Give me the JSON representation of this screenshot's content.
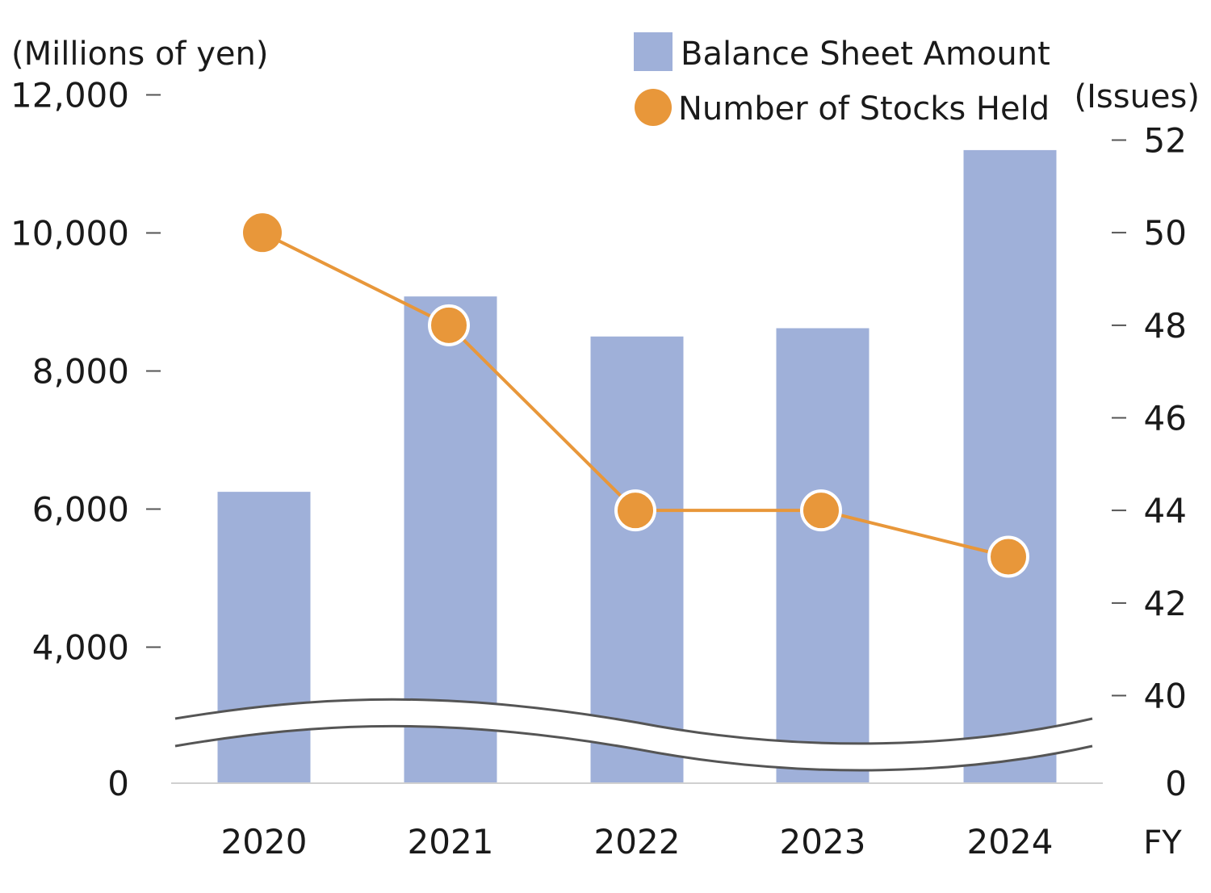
{
  "chart_data": {
    "type": "bar",
    "categories": [
      "2020",
      "2021",
      "2022",
      "2023",
      "2024"
    ],
    "xlabel": "FY",
    "y_left": {
      "label": "(Millions of yen)",
      "ticks": [
        "0",
        "4,000",
        "6,000",
        "8,000",
        "10,000",
        "12,000"
      ],
      "range": [
        4000,
        12000
      ],
      "axis_break": true
    },
    "y_right": {
      "label": "(Issues)",
      "ticks": [
        "0",
        "40",
        "42",
        "44",
        "46",
        "48",
        "50",
        "52"
      ],
      "range": [
        40,
        52
      ],
      "axis_break": true
    },
    "series": [
      {
        "name": "Balance Sheet Amount",
        "kind": "bar",
        "axis": "left",
        "color": "#9fb0d9",
        "values": [
          6250,
          9080,
          8500,
          8620,
          11200
        ]
      },
      {
        "name": "Number of Stocks Held",
        "kind": "line",
        "axis": "right",
        "color": "#e8973a",
        "values": [
          50,
          48,
          44,
          44,
          43
        ]
      }
    ],
    "legend_position": "top-right",
    "grid": false
  }
}
